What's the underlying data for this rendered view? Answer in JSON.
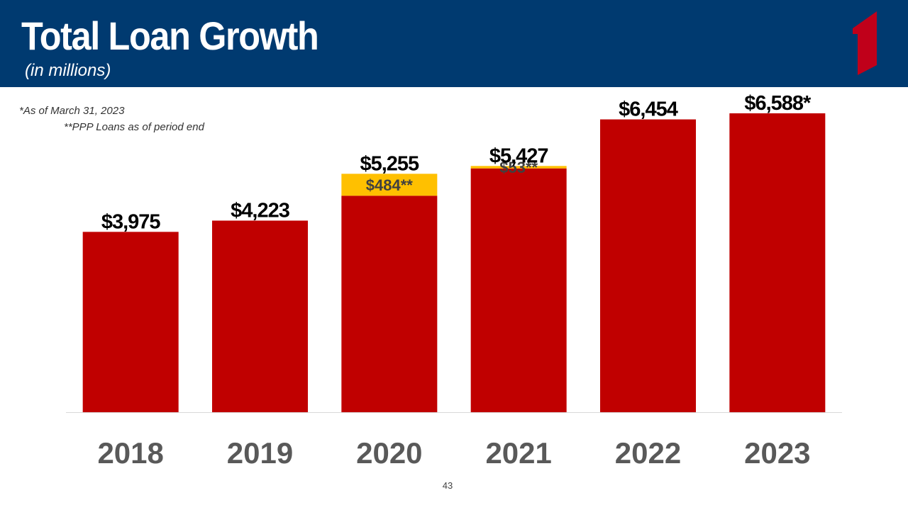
{
  "header": {
    "title": "Total Loan Growth",
    "subtitle": "(in millions)",
    "background_color": "#003a70",
    "logo_icon": "bank-logo-icon",
    "logo_color": "#c0001a"
  },
  "notes": {
    "as_of": "*As of March 31, 2023",
    "ppp": "**PPP Loans as of period end"
  },
  "page_number": "43",
  "chart_data": {
    "type": "bar",
    "stacked": true,
    "categories": [
      "2018",
      "2019",
      "2020",
      "2021",
      "2022",
      "2023"
    ],
    "series": [
      {
        "name": "",
        "color": "#c00000",
        "values": [
          3975,
          4223,
          4771,
          5374,
          6454,
          6588
        ]
      },
      {
        "name": "",
        "color": "#ffc000",
        "values": [
          0,
          0,
          484,
          53,
          0,
          0
        ]
      }
    ],
    "total_labels": [
      "$3,975",
      "$4,223",
      "$5,255",
      "$5,427",
      "$6,454",
      "$6,588*"
    ],
    "segment_labels": [
      "",
      "",
      "$484**",
      "$53**",
      "",
      ""
    ],
    "ylim": [
      0,
      6900
    ],
    "grid": false,
    "legend": "none"
  }
}
